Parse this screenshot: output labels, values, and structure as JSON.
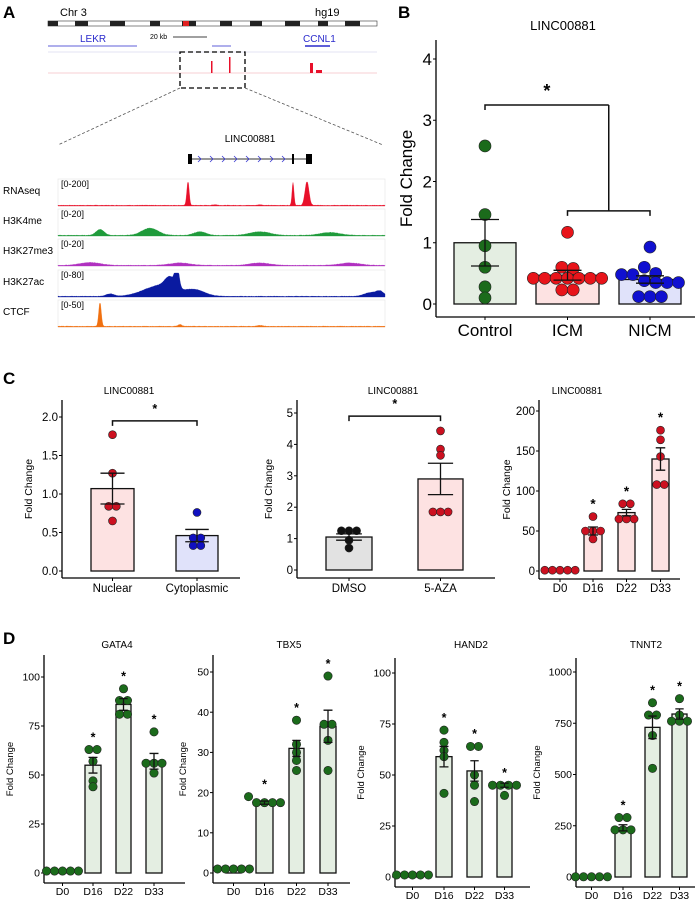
{
  "panels": {
    "a": "A",
    "b": "B",
    "c": "C",
    "d": "D"
  },
  "panel_a": {
    "chromosome": "Chr 3",
    "genome": "hg19",
    "scale_label": "20 kb",
    "genes": [
      "LEKR",
      "CCNL1"
    ],
    "zoom_gene": "LINC00881",
    "gene_color": "#2a2acc",
    "tracks": [
      {
        "name": "RNAseq",
        "range": "[0-200]",
        "color": "#e8102a"
      },
      {
        "name": "H3K4me",
        "range": "[0-20]",
        "color": "#1e9a3a"
      },
      {
        "name": "H3K27me3",
        "range": "[0-20]",
        "color": "#b030c0"
      },
      {
        "name": "H3K27ac",
        "range": "[0-80]",
        "color": "#0a1aa0"
      },
      {
        "name": "CTCF",
        "range": "[0-50]",
        "color": "#f07010"
      }
    ]
  },
  "chart_data": [
    {
      "type": "bar",
      "panel": "B",
      "title": "LINC00881",
      "ylabel": "Fold Change",
      "ylim": [
        0,
        4.2
      ],
      "yticks": [
        "0",
        "1",
        "2",
        "3",
        "4"
      ],
      "categories": [
        "Control",
        "ICM",
        "NICM"
      ],
      "values": [
        1.0,
        0.47,
        0.4
      ],
      "sem": [
        0.38,
        0.08,
        0.06
      ],
      "fills": [
        "#e4eee2",
        "#fde2e2",
        "#e0e2fa"
      ],
      "point_colors": [
        "#1b6b1b",
        "#e8141a",
        "#1010d0"
      ],
      "points": [
        [
          2.58,
          1.46,
          0.95,
          0.6,
          0.28,
          0.1
        ],
        [
          1.17,
          0.6,
          0.58,
          0.42,
          0.42,
          0.42,
          0.42,
          0.42,
          0.42,
          0.42,
          0.23,
          0.23
        ],
        [
          0.93,
          0.6,
          0.5,
          0.48,
          0.48,
          0.38,
          0.35,
          0.35,
          0.35,
          0.12,
          0.12,
          0.12
        ]
      ],
      "significance": [],
      "comparisons": [
        {
          "from": 0,
          "to_group": [
            1,
            2
          ],
          "y": 3.25,
          "sub_y": 1.52,
          "label": "*"
        }
      ]
    },
    {
      "type": "bar",
      "panel": "C",
      "title": "LINC00881",
      "ylabel": "Fold Change",
      "ylim": [
        0,
        2.2
      ],
      "yticks": [
        "0.0",
        "0.5",
        "1.0",
        "1.5",
        "2.0"
      ],
      "categories": [
        "Nuclear",
        "Cytoplasmic"
      ],
      "values": [
        1.07,
        0.46
      ],
      "sem": [
        0.2,
        0.08
      ],
      "fills": [
        "#fde2e2",
        "#e0e2fa"
      ],
      "point_colors": [
        "#cc1020",
        "#1010c0"
      ],
      "points": [
        [
          1.77,
          1.27,
          0.84,
          0.84,
          0.65
        ],
        [
          0.76,
          0.43,
          0.43,
          0.33,
          0.33
        ]
      ],
      "significance": [],
      "comparisons": [
        {
          "from": 0,
          "to": 1,
          "y": 1.95,
          "label": "*"
        }
      ]
    },
    {
      "type": "bar",
      "panel": "C",
      "title": "LINC00881",
      "ylabel": "Fold Change",
      "ylim": [
        0,
        5.4
      ],
      "yticks": [
        "0",
        "1",
        "2",
        "3",
        "4",
        "5"
      ],
      "categories": [
        "DMSO",
        "5-AZA"
      ],
      "values": [
        1.05,
        2.9
      ],
      "sem": [
        0.1,
        0.5
      ],
      "fills": [
        "#e2e2e2",
        "#fde2e2"
      ],
      "point_colors": [
        "#111111",
        "#cc1020"
      ],
      "points": [
        [
          1.25,
          1.25,
          1.25,
          0.95,
          0.7
        ],
        [
          4.43,
          3.85,
          3.65,
          1.85,
          1.85,
          1.85
        ]
      ],
      "significance": [],
      "comparisons": [
        {
          "from": 0,
          "to": 1,
          "y": 4.9,
          "label": "*"
        }
      ]
    },
    {
      "type": "bar",
      "panel": "C",
      "title": "LINC00881",
      "ylabel": "Fold Change",
      "ylim": [
        0,
        210
      ],
      "yticks": [
        "0",
        "50",
        "100",
        "150",
        "200"
      ],
      "categories": [
        "D0",
        "D16",
        "D22",
        "D33"
      ],
      "values": [
        1,
        50,
        73,
        140
      ],
      "sem": [
        0,
        5,
        4,
        14
      ],
      "fills": [
        "#fde2e2",
        "#fde2e2",
        "#fde2e2",
        "#fde2e2"
      ],
      "point_colors": [
        "#cc1020",
        "#cc1020",
        "#cc1020",
        "#cc1020"
      ],
      "points": [
        [
          1,
          1,
          1,
          1,
          1
        ],
        [
          68,
          50,
          50,
          50,
          40
        ],
        [
          84,
          84,
          65,
          65,
          65
        ],
        [
          176,
          164,
          143,
          108,
          108
        ]
      ],
      "significance": [
        "",
        "*",
        "*",
        "*"
      ],
      "comparisons": []
    },
    {
      "type": "bar",
      "panel": "D",
      "title": "GATA4",
      "ylabel": "Fold Change",
      "ylim": [
        0,
        110
      ],
      "yticks": [
        "0",
        "25",
        "50",
        "75",
        "100"
      ],
      "categories": [
        "D0",
        "D16",
        "D22",
        "D33"
      ],
      "values": [
        1,
        55,
        86,
        57
      ],
      "sem": [
        0,
        4,
        3,
        4
      ],
      "fills": [
        "#e4eee2",
        "#e4eee2",
        "#e4eee2",
        "#e4eee2"
      ],
      "point_colors": [
        "#1b6b1b",
        "#1b6b1b",
        "#1b6b1b",
        "#1b6b1b"
      ],
      "points": [
        [
          1,
          1,
          1,
          1,
          1
        ],
        [
          63,
          63,
          57,
          47,
          44
        ],
        [
          94,
          88,
          88,
          81,
          81
        ],
        [
          72,
          56,
          56,
          56,
          51
        ]
      ],
      "significance": [
        "",
        "*",
        "*",
        "*"
      ],
      "comparisons": []
    },
    {
      "type": "bar",
      "panel": "D",
      "title": "TBX5",
      "ylabel": "Fold Change",
      "ylim": [
        0,
        53
      ],
      "yticks": [
        "0",
        "10",
        "20",
        "30",
        "40",
        "50"
      ],
      "categories": [
        "D0",
        "D16",
        "D22",
        "D33"
      ],
      "values": [
        1,
        17.5,
        31,
        36.5
      ],
      "sem": [
        0,
        0.4,
        2,
        4
      ],
      "fills": [
        "#e4eee2",
        "#e4eee2",
        "#e4eee2",
        "#e4eee2"
      ],
      "point_colors": [
        "#1b6b1b",
        "#1b6b1b",
        "#1b6b1b",
        "#1b6b1b"
      ],
      "points": [
        [
          1,
          1,
          1,
          1,
          1
        ],
        [
          19,
          17.5,
          17.5,
          17.5,
          17.5
        ],
        [
          38,
          32,
          30,
          28,
          25.5
        ],
        [
          49,
          37,
          37,
          33,
          25.5
        ]
      ],
      "significance": [
        "",
        "*",
        "*",
        "*"
      ],
      "comparisons": []
    },
    {
      "type": "bar",
      "panel": "D",
      "title": "HAND2",
      "ylabel": "Fold Change",
      "ylim": [
        0,
        105
      ],
      "yticks": [
        "0",
        "25",
        "50",
        "75",
        "100"
      ],
      "categories": [
        "D0",
        "D16",
        "D22",
        "D33"
      ],
      "values": [
        1,
        59,
        52,
        45
      ],
      "sem": [
        0,
        5,
        5,
        1
      ],
      "fills": [
        "#e4eee2",
        "#e4eee2",
        "#e4eee2",
        "#e4eee2"
      ],
      "point_colors": [
        "#1b6b1b",
        "#1b6b1b",
        "#1b6b1b",
        "#1b6b1b"
      ],
      "points": [
        [
          1,
          1,
          1,
          1,
          1
        ],
        [
          72,
          66,
          62,
          59,
          41
        ],
        [
          64,
          64,
          50,
          45,
          37
        ],
        [
          45,
          45,
          45,
          45,
          40
        ]
      ],
      "significance": [
        "",
        "*",
        "*",
        "*"
      ],
      "comparisons": []
    },
    {
      "type": "bar",
      "panel": "D",
      "title": "TNNT2",
      "ylabel": "Fold Change",
      "ylim": [
        0,
        1050
      ],
      "yticks": [
        "0",
        "250",
        "500",
        "750",
        "1000"
      ],
      "categories": [
        "D0",
        "D16",
        "D22",
        "D33"
      ],
      "values": [
        1,
        240,
        730,
        795
      ],
      "sem": [
        0,
        15,
        55,
        25
      ],
      "fills": [
        "#e4eee2",
        "#e4eee2",
        "#e4eee2",
        "#e4eee2"
      ],
      "point_colors": [
        "#1b6b1b",
        "#1b6b1b",
        "#1b6b1b",
        "#1b6b1b"
      ],
      "points": [
        [
          1,
          1,
          1,
          1,
          1
        ],
        [
          290,
          290,
          230,
          230,
          230
        ],
        [
          850,
          790,
          790,
          690,
          530
        ],
        [
          870,
          790,
          760,
          760,
          760
        ]
      ],
      "significance": [
        "",
        "*",
        "*",
        "*"
      ],
      "comparisons": []
    }
  ]
}
